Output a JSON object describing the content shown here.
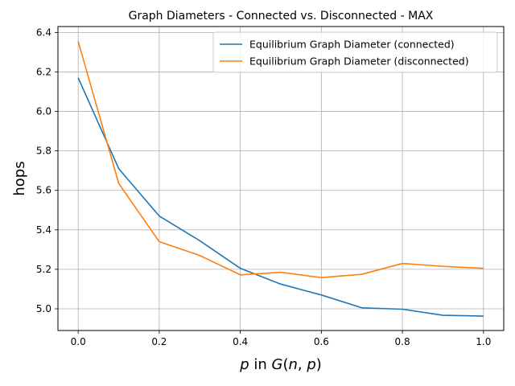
{
  "chart_data": {
    "type": "line",
    "title": "Graph Diameters - Connected vs. Disconnected - MAX",
    "xlabel": "p in G(n,p)",
    "ylabel": "hops",
    "x": [
      0.0,
      0.1,
      0.2,
      0.3,
      0.4,
      0.5,
      0.6,
      0.7,
      0.8,
      0.9,
      1.0
    ],
    "xlim": [
      -0.05,
      1.05
    ],
    "ylim": [
      4.89,
      6.43
    ],
    "xticks": [
      "0.0",
      "0.2",
      "0.4",
      "0.6",
      "0.8",
      "1.0"
    ],
    "yticks": [
      "5.0",
      "5.2",
      "5.4",
      "5.6",
      "5.8",
      "6.0",
      "6.2",
      "6.4"
    ],
    "grid": true,
    "legend_position": "upper-right",
    "series": [
      {
        "name": "Equilibrium Graph Diameter (connected)",
        "color": "#1f77b4",
        "values": [
          6.17,
          5.71,
          5.47,
          5.345,
          5.205,
          5.125,
          5.07,
          5.005,
          4.998,
          4.967,
          4.963
        ]
      },
      {
        "name": "Equilibrium Graph Diameter (disconnected)",
        "color": "#ff7f0e",
        "values": [
          6.355,
          5.635,
          5.34,
          5.27,
          5.172,
          5.185,
          5.158,
          5.175,
          5.23,
          5.215,
          5.205
        ]
      }
    ]
  }
}
